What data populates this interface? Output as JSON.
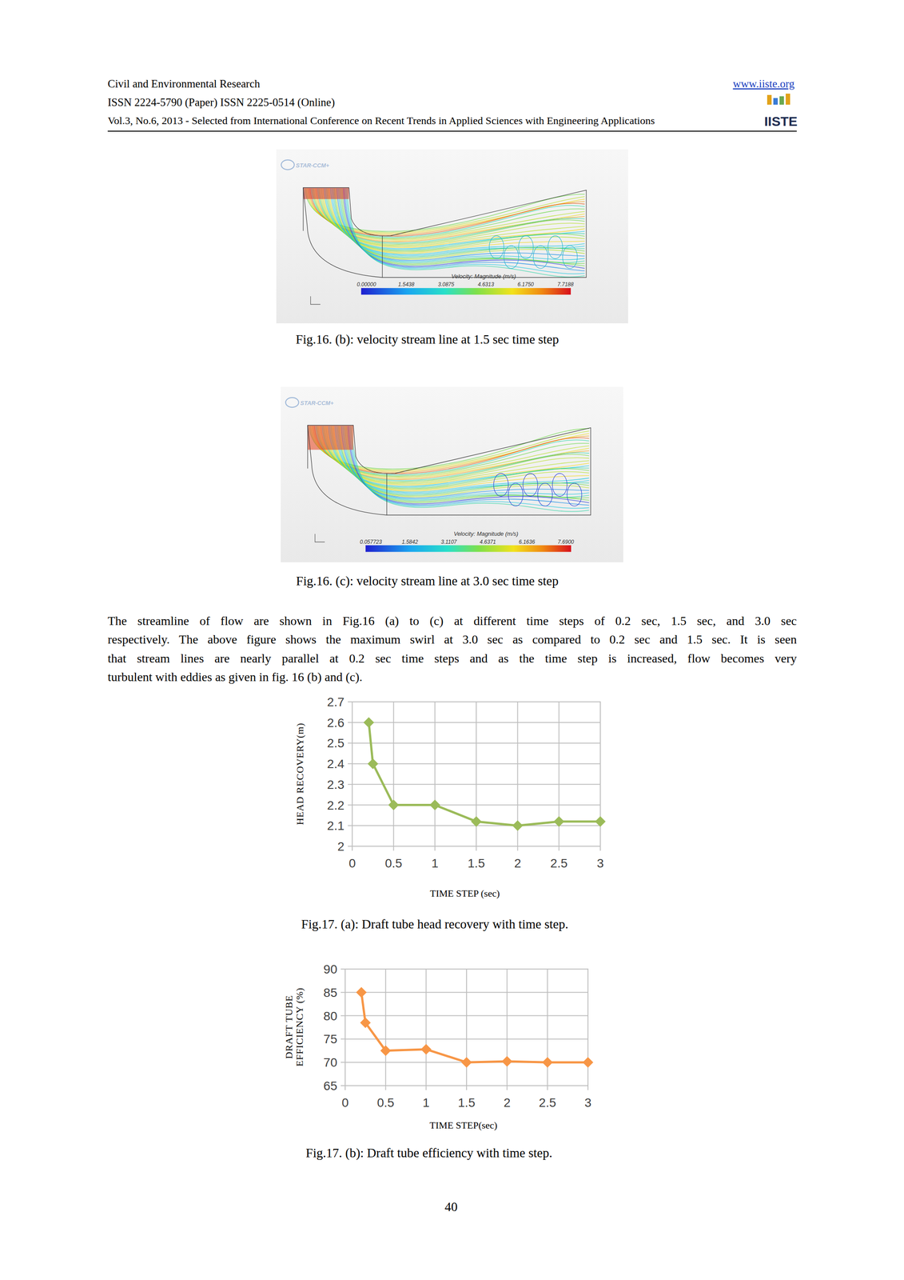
{
  "header": {
    "journal": "Civil and Environmental Research",
    "url": "www.iiste.org",
    "issn": "ISSN 2224-5790 (Paper) ISSN 2225-0514 (Online)",
    "volume": "Vol.3, No.6, 2013 - Selected from International Conference on Recent Trends in Applied Sciences with Engineering Applications",
    "logo": "IISTE"
  },
  "figures": [
    {
      "software": "STAR-CCM+",
      "colorbar_title": "Velocity: Magnitude (m/s)",
      "colorbar_ticks": [
        "0.00000",
        "1.5438",
        "3.0875",
        "4.6313",
        "6.1750",
        "7.7188"
      ],
      "caption": "Fig.16. (b): velocity stream line at 1.5 sec time step"
    },
    {
      "software": "STAR-CCM+",
      "colorbar_title": "Velocity: Magnitude (m/s)",
      "colorbar_ticks": [
        "0.057723",
        "1.5842",
        "3.1107",
        "4.6371",
        "6.1636",
        "7.6900"
      ],
      "caption": "Fig.16. (c): velocity stream line at 3.0 sec time step"
    }
  ],
  "paragraph": [
    "The streamline of flow are shown in Fig.16 (a) to (c) at different time steps of 0.2 sec, 1.5 sec, and 3.0 sec",
    "respectively. The above figure shows the maximum swirl at 3.0 sec as compared to 0.2 sec and 1.5 sec. It is seen",
    "that stream lines are nearly parallel at 0.2 sec time steps and as the time step is increased, flow becomes very",
    "turbulent with eddies as given in fig. 16 (b) and (c)."
  ],
  "chart_data": [
    {
      "type": "line",
      "title": "Fig.17. (a): Draft tube head recovery with time step.",
      "x_label": "TIME STEP (sec)",
      "y_label": "HEAD RECOVERY(m)",
      "x": [
        0.2,
        0.25,
        0.5,
        1,
        1.5,
        2,
        2.5,
        3
      ],
      "values": [
        2.6,
        2.4,
        2.2,
        2.2,
        2.12,
        2.1,
        2.12,
        2.12
      ],
      "color": "#9bbb59",
      "marker": "diamond",
      "xlim": [
        0,
        3
      ],
      "xticks": [
        0,
        0.5,
        1,
        1.5,
        2,
        2.5,
        3
      ],
      "ylim": [
        2,
        2.7
      ],
      "yticks": [
        2,
        2.1,
        2.2,
        2.3,
        2.4,
        2.5,
        2.6,
        2.7
      ],
      "grid": true
    },
    {
      "type": "line",
      "title": "Fig.17. (b): Draft tube efficiency with time step.",
      "x_label": "TIME STEP(sec)",
      "y_label": "DRAFT TUBE EFFICIENCY (%)",
      "x": [
        0.2,
        0.25,
        0.5,
        1,
        1.5,
        2,
        2.5,
        3
      ],
      "values": [
        85,
        78.5,
        72.5,
        72.8,
        70,
        70.2,
        70,
        70
      ],
      "color": "#f79646",
      "marker": "diamond",
      "xlim": [
        0,
        3
      ],
      "xticks": [
        0,
        0.5,
        1,
        1.5,
        2,
        2.5,
        3
      ],
      "ylim": [
        65,
        90
      ],
      "yticks": [
        65,
        70,
        75,
        80,
        85,
        90
      ],
      "grid": true
    }
  ],
  "page_number": "40"
}
